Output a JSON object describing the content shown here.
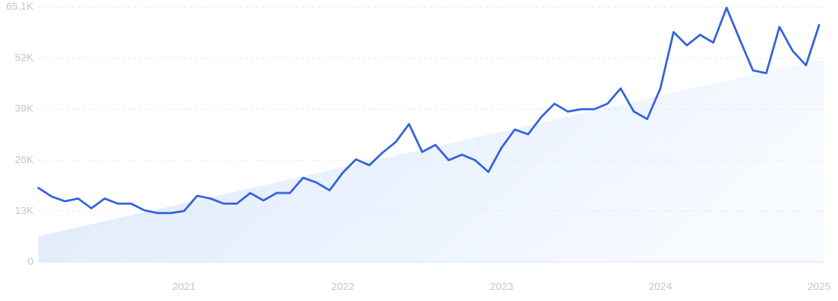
{
  "chart_data": {
    "type": "line",
    "x": [
      2020.083,
      2020.167,
      2020.25,
      2020.333,
      2020.417,
      2020.5,
      2020.583,
      2020.667,
      2020.75,
      2020.833,
      2020.917,
      2021,
      2021.083,
      2021.167,
      2021.25,
      2021.333,
      2021.417,
      2021.5,
      2021.583,
      2021.667,
      2021.75,
      2021.833,
      2021.917,
      2022,
      2022.083,
      2022.167,
      2022.25,
      2022.333,
      2022.417,
      2022.5,
      2022.583,
      2022.667,
      2022.75,
      2022.833,
      2022.917,
      2023,
      2023.083,
      2023.167,
      2023.25,
      2023.333,
      2023.417,
      2023.5,
      2023.583,
      2023.667,
      2023.75,
      2023.833,
      2023.917,
      2024,
      2024.083,
      2024.167,
      2024.25,
      2024.333,
      2024.417,
      2024.5,
      2024.583,
      2024.667,
      2024.75,
      2024.833,
      2024.917,
      2025
    ],
    "series": [
      {
        "color": "#3463df",
        "values": [
          18900,
          16700,
          15500,
          16200,
          13700,
          16200,
          14900,
          14900,
          13200,
          12500,
          12500,
          13000,
          16900,
          16200,
          14900,
          14900,
          17600,
          15700,
          17600,
          17600,
          21500,
          20300,
          18300,
          22800,
          26200,
          24700,
          27900,
          30600,
          35200,
          28100,
          29900,
          26000,
          27400,
          26000,
          23000,
          29200,
          33800,
          32600,
          37000,
          40400,
          38400,
          39000,
          39000,
          40400,
          44300,
          38400,
          36500,
          44300,
          58700,
          55300,
          58000,
          56000,
          64900,
          56800,
          48900,
          48200,
          60000,
          53900,
          50200,
          60500
        ]
      }
    ],
    "trend": [
      6600,
      51900
    ],
    "xlim": [
      2020.083,
      2025
    ],
    "xticks": [
      2021,
      2022,
      2023,
      2024,
      2025
    ],
    "ylim": [
      0,
      65100
    ],
    "yticks": [
      0,
      {
        "value": 13000,
        "label": "13K"
      },
      {
        "value": 26000,
        "label": "26K"
      },
      {
        "value": 39000,
        "label": "39K"
      },
      {
        "value": 52000,
        "label": "52K"
      },
      {
        "value": 65100,
        "label": "65.1K"
      }
    ],
    "grid": true
  }
}
